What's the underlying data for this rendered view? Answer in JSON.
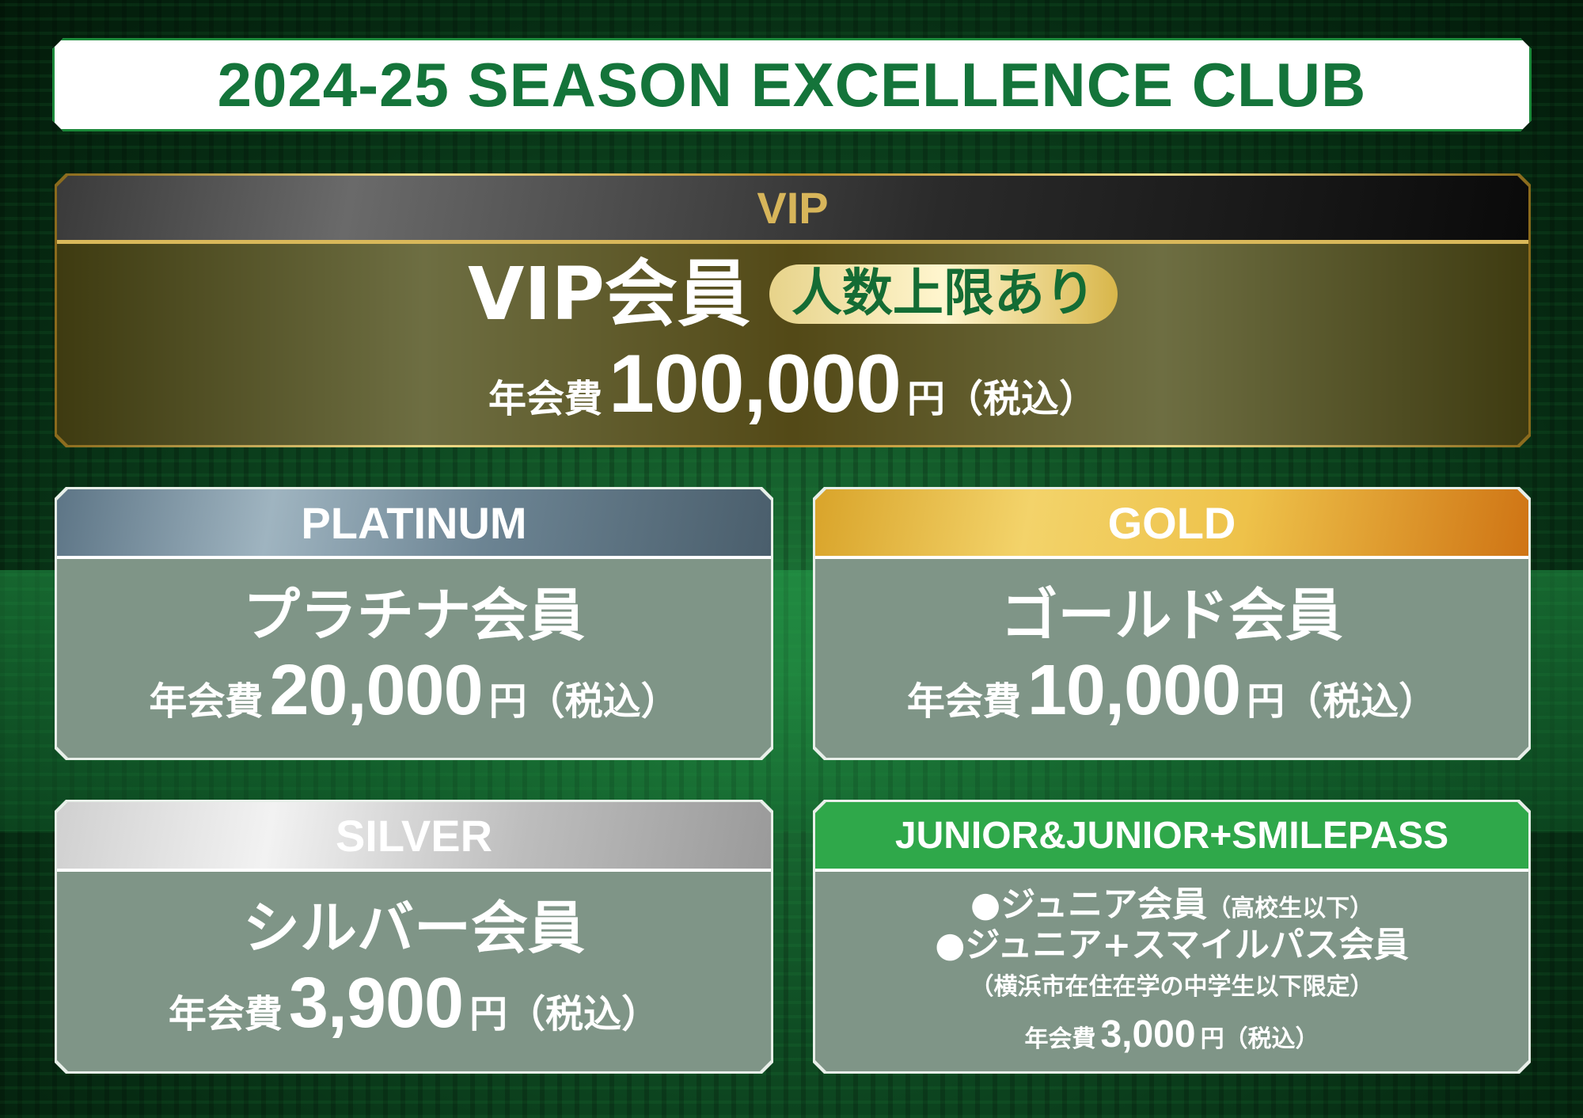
{
  "title": "2024-25 SEASON  EXCELLENCE CLUB",
  "colors": {
    "brand_green": "#14743a",
    "gold": "#d7b55a",
    "junior_green": "#2fa84a"
  },
  "vip": {
    "header": "VIP",
    "name": "VIP会員",
    "badge": "人数上限あり",
    "fee_label": "年会費",
    "amount": "100,000",
    "suffix": "円（税込）"
  },
  "platinum": {
    "header": "PLATINUM",
    "name": "プラチナ会員",
    "fee_label": "年会費",
    "amount": "20,000",
    "suffix": "円（税込）"
  },
  "gold": {
    "header": "GOLD",
    "name": "ゴールド会員",
    "fee_label": "年会費",
    "amount": "10,000",
    "suffix": "円（税込）"
  },
  "silver": {
    "header": "SILVER",
    "name": "シルバー会員",
    "fee_label": "年会費",
    "amount": "3,900",
    "suffix": "円（税込）"
  },
  "junior": {
    "header": "JUNIOR&JUNIOR+SMILEPASS",
    "line1": "●ジュニア会員",
    "line1_note": "（高校生以下）",
    "line2": "●ジュニア+スマイルパス会員",
    "line2_note": "（横浜市在住在学の中学生以下限定）",
    "fee_label": "年会費",
    "amount": "3,000",
    "suffix": "円（税込）"
  }
}
